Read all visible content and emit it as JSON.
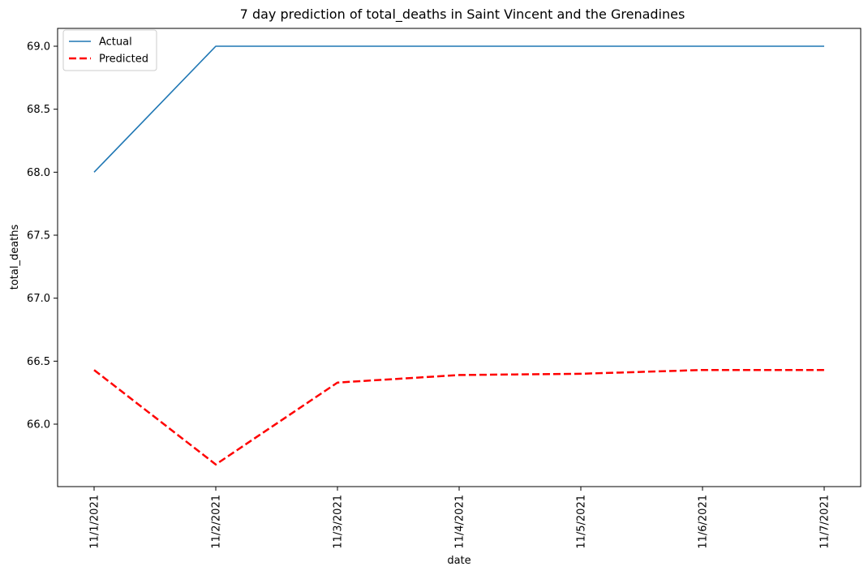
{
  "chart_data": {
    "type": "line",
    "title": "7 day prediction of total_deaths in Saint Vincent and the Grenadines",
    "xlabel": "date",
    "ylabel": "total_deaths",
    "categories": [
      "11/1/2021",
      "11/2/2021",
      "11/3/2021",
      "11/4/2021",
      "11/5/2021",
      "11/6/2021",
      "11/7/2021"
    ],
    "ylim": [
      65.5,
      69.1
    ],
    "yticks": [
      "66.0",
      "66.5",
      "67.0",
      "67.5",
      "68.0",
      "68.5",
      "69.0"
    ],
    "grid": false,
    "legend_position": "top-left",
    "series": [
      {
        "name": "Actual",
        "values": [
          68,
          69,
          69,
          69,
          69,
          69,
          69
        ],
        "color": "#1f77b4",
        "style": "solid"
      },
      {
        "name": "Predicted",
        "values": [
          66.43,
          65.68,
          66.33,
          66.39,
          66.4,
          66.43,
          66.43
        ],
        "color": "#ff0000",
        "style": "dashed"
      }
    ]
  }
}
